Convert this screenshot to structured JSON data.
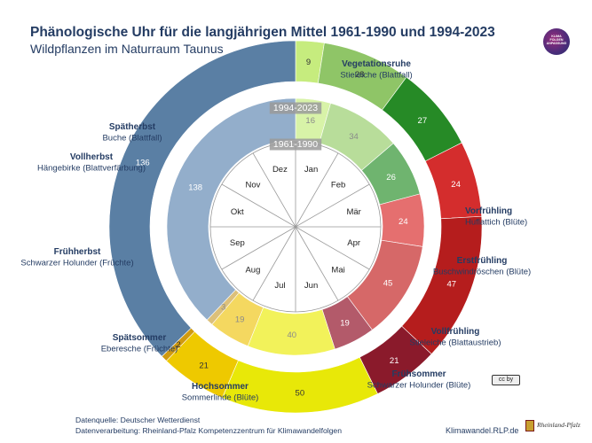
{
  "header": {
    "title": "Phänologische Uhr für die langjährigen Mittel 1961-1990 und 1994-2023",
    "subtitle": "Wildpflanzen im Naturraum Taunus"
  },
  "logo": {
    "lines": [
      "KLIMA",
      "FOLGEN",
      "ANPASSUNG"
    ]
  },
  "footer": {
    "source": "Datenquelle: Deutscher Wetterdienst",
    "processing": "Datenverarbeitung: Rheinland-Pfalz Kompetenzzentrum für Klimawandelfolgen",
    "website": "Klimawandel.RLP.de",
    "state_logo_text": "Rheinland-Pfalz",
    "license": "cc  by"
  },
  "chart_data": {
    "type": "pie",
    "description": "Two concentric ring (donut) charts; segment values are durations in days of each phenological season, starting at 0° (top, start of January) clockwise.",
    "outer_ring": {
      "label": "1994-2023",
      "segments": [
        {
          "phase": "Vorfrühling",
          "indicator": "Huflattich (Blüte)",
          "days": 9,
          "color": "#c6ec7e"
        },
        {
          "phase": "Erstfrühling",
          "indicator": "Buschwindröschen (Blüte)",
          "days": 28,
          "color": "#8fc567"
        },
        {
          "phase": "Vollfrühling",
          "indicator": "Stieleiche (Blattaustrieb)",
          "days": 27,
          "color": "#268a26"
        },
        {
          "phase": "Frühsommer",
          "indicator": "Schwarzer Holunder (Blüte)",
          "days": 24,
          "color": "#d42d2d"
        },
        {
          "phase": "Hochsommer",
          "indicator": "Sommerlinde (Blüte)",
          "days": 47,
          "color": "#b51d1d"
        },
        {
          "phase": "Spätsommer",
          "indicator": "Eberesche (Früchte)",
          "days": 21,
          "color": "#8a1a2b"
        },
        {
          "phase": "Frühherbst",
          "indicator": "Schwarzer Holunder (Früchte)",
          "days": 50,
          "color": "#e8e808"
        },
        {
          "phase": "Vollherbst",
          "indicator": "Hängebirke (Blattverfärbung)",
          "days": 21,
          "color": "#eec900"
        },
        {
          "phase": "Spätherbst",
          "indicator": "Buche (Blattfall)",
          "days": 2,
          "color": "#d09a10"
        },
        {
          "phase": "Vegetationsruhe",
          "indicator": "Stieleiche (Blattfall)",
          "days": 136,
          "color": "#5a7fa4"
        }
      ]
    },
    "inner_ring": {
      "label": "1961-1990",
      "segments": [
        {
          "phase": "Vorfrühling",
          "days": 16,
          "color": "#d8f3a8"
        },
        {
          "phase": "Erstfrühling",
          "days": 34,
          "color": "#b8dd9a"
        },
        {
          "phase": "Vollfrühling",
          "days": 26,
          "color": "#6fb46f"
        },
        {
          "phase": "Frühsommer",
          "days": 24,
          "color": "#e56f6f"
        },
        {
          "phase": "Hochsommer",
          "days": 45,
          "color": "#d66868"
        },
        {
          "phase": "Spätsommer",
          "days": 19,
          "color": "#b35a6a"
        },
        {
          "phase": "Frühherbst",
          "days": 40,
          "color": "#f2f25a"
        },
        {
          "phase": "Vollherbst",
          "days": 19,
          "color": "#f4d860"
        },
        {
          "phase": "Spätherbst",
          "days": 3,
          "color": "#dcc07a"
        },
        {
          "phase": "Vegetationsruhe",
          "days": 138,
          "color": "#93aecb"
        }
      ]
    },
    "months": [
      "Jan",
      "Feb",
      "Mär",
      "Apr",
      "Mai",
      "Jun",
      "Jul",
      "Aug",
      "Sep",
      "Okt",
      "Nov",
      "Dez"
    ],
    "callouts": [
      {
        "phase": "Vegetationsruhe",
        "indicator": "Stieleiche (Blattfall)"
      },
      {
        "phase": "Vorfrühling",
        "indicator": "Huflattich (Blüte)"
      },
      {
        "phase": "Erstfrühling",
        "indicator": "Buschwindröschen (Blüte)"
      },
      {
        "phase": "Vollfrühling",
        "indicator": "Stieleiche (Blattaustrieb)"
      },
      {
        "phase": "Frühsommer",
        "indicator": "Schwarzer Holunder (Blüte)"
      },
      {
        "phase": "Hochsommer",
        "indicator": "Sommerlinde (Blüte)"
      },
      {
        "phase": "Spätsommer",
        "indicator": "Eberesche (Früchte)"
      },
      {
        "phase": "Frühherbst",
        "indicator": "Schwarzer Holunder (Früchte)"
      },
      {
        "phase": "Vollherbst",
        "indicator": "Hängebirke (Blattverfärbung)"
      },
      {
        "phase": "Spätherbst",
        "indicator": "Buche (Blattfall)"
      }
    ]
  }
}
